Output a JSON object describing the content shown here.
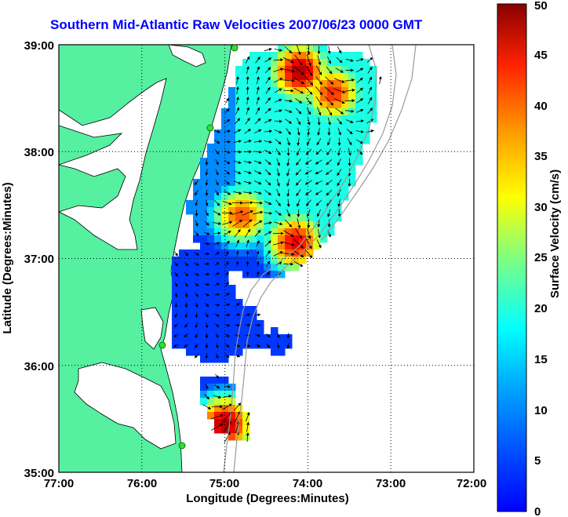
{
  "title": "Southern Mid-Atlantic Raw Velocities 2007/06/23 0000 GMT",
  "xlabel": "Longitude (Degrees:Minutes)",
  "ylabel": "Latitude (Degrees:Minutes)",
  "x_ticks": [
    "77:00",
    "76:00",
    "75:00",
    "74:00",
    "73:00",
    "72:00"
  ],
  "y_ticks": [
    "39:00",
    "38:00",
    "37:00",
    "36:00",
    "35:00"
  ],
  "colorbar": {
    "label": "Surface Velocity (cm/s)",
    "ticks": [
      "0",
      "5",
      "10",
      "15",
      "20",
      "25",
      "30",
      "35",
      "40",
      "45",
      "50"
    ],
    "range": [
      0,
      50
    ],
    "colormap": "jet"
  },
  "colors": {
    "land": "#55f0a0",
    "title": "#0000ff",
    "coast": "#000000",
    "bathymetry": "#999999",
    "site_marker": "#33dd33"
  },
  "chart_data": {
    "type": "heatmap",
    "xlim": [
      -77,
      -72
    ],
    "ylim": [
      35,
      39
    ],
    "grid": true,
    "hotspots": [
      {
        "lon": -74.1,
        "lat": 38.75,
        "speed": 48
      },
      {
        "lon": -73.7,
        "lat": 38.55,
        "speed": 42
      },
      {
        "lon": -74.8,
        "lat": 37.4,
        "speed": 40
      },
      {
        "lon": -74.15,
        "lat": 37.15,
        "speed": 45
      },
      {
        "lon": -75.0,
        "lat": 35.45,
        "speed": 48
      }
    ]
  }
}
